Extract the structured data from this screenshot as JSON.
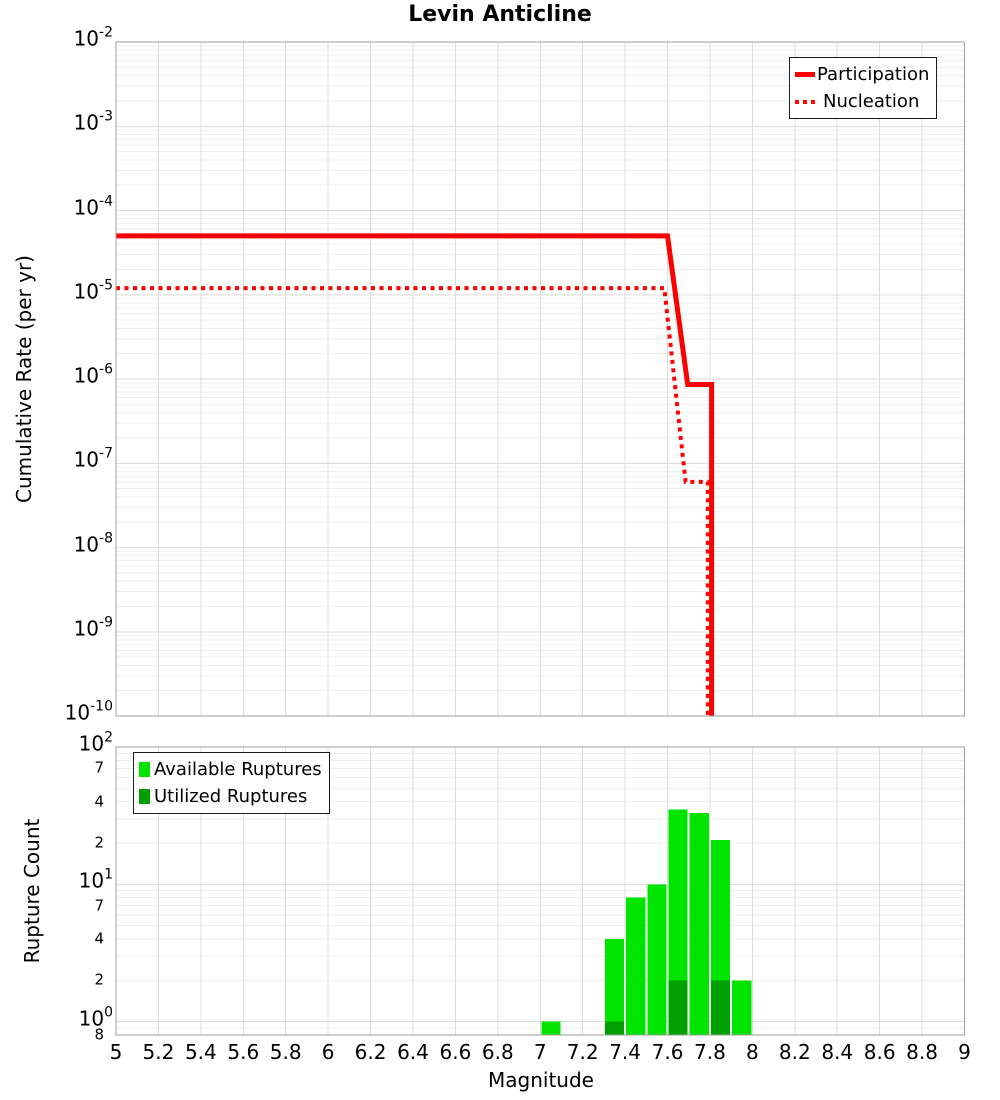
{
  "chart_data": [
    {
      "id": "cumulative-rate",
      "type": "line",
      "title": "Levin Anticline",
      "ylabel": "Cumulative Rate (per yr)",
      "xlabel": "",
      "xlim": [
        5,
        9
      ],
      "ylim": [
        1e-10,
        0.01
      ],
      "y_scale": "log",
      "grid": true,
      "legend_position": "top-right",
      "y_ticks": [
        {
          "base": "10",
          "exp": "-2",
          "v": 0.01
        },
        {
          "base": "10",
          "exp": "-3",
          "v": 0.001
        },
        {
          "base": "10",
          "exp": "-4",
          "v": 0.0001
        },
        {
          "base": "10",
          "exp": "-5",
          "v": 1e-05
        },
        {
          "base": "10",
          "exp": "-6",
          "v": 1e-06
        },
        {
          "base": "10",
          "exp": "-7",
          "v": 1e-07
        },
        {
          "base": "10",
          "exp": "-8",
          "v": 1e-08
        },
        {
          "base": "10",
          "exp": "-9",
          "v": 1e-09
        },
        {
          "base": "10",
          "exp": "-10",
          "v": 1e-10
        }
      ],
      "series": [
        {
          "name": "Participation",
          "style": "solid",
          "color": "#ff0000",
          "line_width": 5,
          "points": [
            [
              5.0,
              5e-05
            ],
            [
              7.6,
              5e-05
            ],
            [
              7.695,
              8.6e-07
            ],
            [
              7.808,
              8.6e-07
            ],
            [
              7.808,
              1e-10
            ]
          ]
        },
        {
          "name": "Nucleation",
          "style": "dotted",
          "color": "#ff0000",
          "line_width": 4,
          "points": [
            [
              5.0,
              1.2e-05
            ],
            [
              7.585,
              1.2e-05
            ],
            [
              7.685,
              6e-08
            ],
            [
              7.79,
              6e-08
            ],
            [
              7.79,
              1e-10
            ]
          ]
        }
      ]
    },
    {
      "id": "rupture-count",
      "type": "bar",
      "ylabel": "Rupture Count",
      "xlabel": "Magnitude",
      "xlim": [
        5,
        9
      ],
      "ylim": [
        0.8,
        100
      ],
      "y_scale": "log",
      "grid": true,
      "legend_position": "top-left",
      "bin_width": 0.1,
      "bin_centers": [
        7.05,
        7.35,
        7.45,
        7.55,
        7.65,
        7.75,
        7.85,
        7.95
      ],
      "series": [
        {
          "name": "Available Ruptures",
          "color": "#00e400",
          "values": [
            1,
            4,
            8,
            10,
            35,
            33,
            21,
            2
          ]
        },
        {
          "name": "Utilized Ruptures",
          "color": "#00a000",
          "values": [
            0,
            1,
            0,
            0,
            2,
            0,
            2,
            0
          ]
        }
      ],
      "y_ticks": [
        {
          "type": "major",
          "base": "10",
          "exp": "2",
          "v": 100
        },
        {
          "type": "minor",
          "label": "7",
          "v": 70
        },
        {
          "type": "minor",
          "label": "4",
          "v": 40
        },
        {
          "type": "minor",
          "label": "2",
          "v": 20
        },
        {
          "type": "major",
          "base": "10",
          "exp": "1",
          "v": 10
        },
        {
          "type": "minor",
          "label": "7",
          "v": 7
        },
        {
          "type": "minor",
          "label": "4",
          "v": 4
        },
        {
          "type": "minor",
          "label": "2",
          "v": 2
        },
        {
          "type": "major",
          "base": "10",
          "exp": "0",
          "v": 1
        },
        {
          "type": "minor",
          "label": "8",
          "v": 0.8
        }
      ],
      "x_ticks": [
        {
          "v": 5,
          "label": "5"
        },
        {
          "v": 5.2,
          "label": "5.2"
        },
        {
          "v": 5.4,
          "label": "5.4"
        },
        {
          "v": 5.6,
          "label": "5.6"
        },
        {
          "v": 5.8,
          "label": "5.8"
        },
        {
          "v": 6,
          "label": "6"
        },
        {
          "v": 6.2,
          "label": "6.2"
        },
        {
          "v": 6.4,
          "label": "6.4"
        },
        {
          "v": 6.6,
          "label": "6.6"
        },
        {
          "v": 6.8,
          "label": "6.8"
        },
        {
          "v": 7,
          "label": "7"
        },
        {
          "v": 7.2,
          "label": "7.2"
        },
        {
          "v": 7.4,
          "label": "7.4"
        },
        {
          "v": 7.6,
          "label": "7.6"
        },
        {
          "v": 7.8,
          "label": "7.8"
        },
        {
          "v": 8,
          "label": "8"
        },
        {
          "v": 8.2,
          "label": "8.2"
        },
        {
          "v": 8.4,
          "label": "8.4"
        },
        {
          "v": 8.6,
          "label": "8.6"
        },
        {
          "v": 8.8,
          "label": "8.8"
        },
        {
          "v": 9,
          "label": "9"
        }
      ]
    }
  ],
  "colors": {
    "grid_major": "#dcdcdc",
    "grid_minor": "#efefef",
    "plot_border": "#9e9e9e",
    "background": "#ffffff"
  }
}
